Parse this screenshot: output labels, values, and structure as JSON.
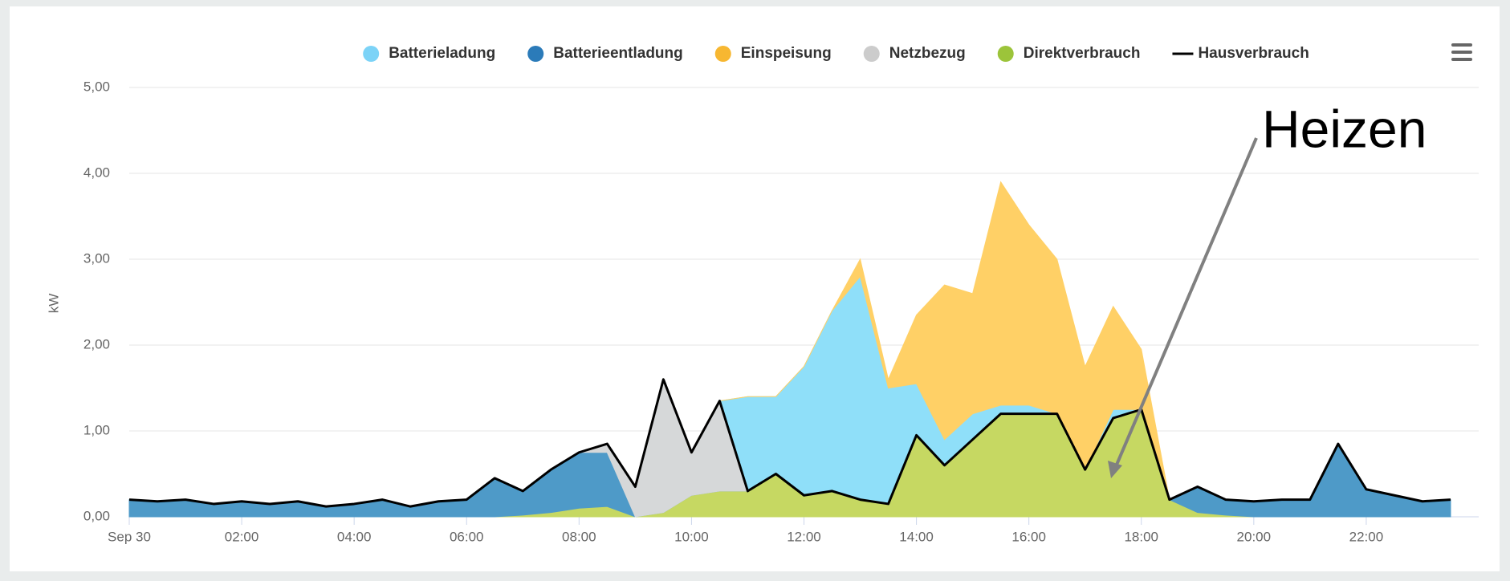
{
  "chart_data": {
    "type": "area",
    "stacked": true,
    "y_label": "kW",
    "x": [
      0,
      0.5,
      1,
      1.5,
      2,
      2.5,
      3,
      3.5,
      4,
      4.5,
      5,
      5.5,
      6,
      6.5,
      7,
      7.5,
      8,
      8.5,
      9,
      9.5,
      10,
      10.5,
      11,
      11.5,
      12,
      12.5,
      13,
      13.5,
      14,
      14.5,
      15,
      15.5,
      16,
      16.5,
      17,
      17.5,
      18,
      18.5,
      19,
      19.5,
      20,
      20.5,
      21,
      21.5,
      22,
      22.5,
      23,
      23.5
    ],
    "xlim": [
      0,
      24
    ],
    "xticks": [
      {
        "value": 0,
        "label": "Sep 30"
      },
      {
        "value": 2,
        "label": "02:00"
      },
      {
        "value": 4,
        "label": "04:00"
      },
      {
        "value": 6,
        "label": "06:00"
      },
      {
        "value": 8,
        "label": "08:00"
      },
      {
        "value": 10,
        "label": "10:00"
      },
      {
        "value": 12,
        "label": "12:00"
      },
      {
        "value": 14,
        "label": "14:00"
      },
      {
        "value": 16,
        "label": "16:00"
      },
      {
        "value": 18,
        "label": "18:00"
      },
      {
        "value": 20,
        "label": "20:00"
      },
      {
        "value": 22,
        "label": "22:00"
      }
    ],
    "ylim": [
      0,
      5
    ],
    "yticks": [
      {
        "value": 0,
        "label": "0,00"
      },
      {
        "value": 1,
        "label": "1,00"
      },
      {
        "value": 2,
        "label": "2,00"
      },
      {
        "value": 3,
        "label": "3,00"
      },
      {
        "value": 4,
        "label": "4,00"
      },
      {
        "value": 5,
        "label": "5,00"
      }
    ],
    "grid": true,
    "legend": "top",
    "series": [
      {
        "name": "Batterieladung",
        "color": "#7cd3f7",
        "values": [
          0,
          0,
          0,
          0,
          0,
          0,
          0,
          0,
          0,
          0,
          0,
          0,
          0,
          0,
          0,
          0,
          0,
          0,
          0,
          0,
          0,
          0,
          1.1,
          0.9,
          1.5,
          2.1,
          2.6,
          1.35,
          0.6,
          0.3,
          0.3,
          0.1,
          0.1,
          0,
          0,
          0.1,
          0,
          0,
          0,
          0,
          0,
          0,
          0,
          0,
          0,
          0,
          0,
          0
        ]
      },
      {
        "name": "Batterieentladung",
        "color": "#2b7bb9",
        "values": [
          0.2,
          0.18,
          0.2,
          0.15,
          0.18,
          0.15,
          0.18,
          0.12,
          0.15,
          0.2,
          0.12,
          0.18,
          0.2,
          0.45,
          0.28,
          0.5,
          0.65,
          0.63,
          0,
          0,
          0,
          0,
          0,
          0,
          0,
          0,
          0,
          0,
          0,
          0,
          0,
          0,
          0,
          0,
          0,
          0,
          0,
          0,
          0.3,
          0.18,
          0.18,
          0.2,
          0.2,
          0.85,
          0.32,
          0.25,
          0.18,
          0.2
        ]
      },
      {
        "name": "Einspeisung",
        "color": "#f7b731",
        "values": [
          0,
          0,
          0,
          0,
          0,
          0,
          0,
          0,
          0,
          0,
          0,
          0,
          0,
          0,
          0,
          0,
          0,
          0,
          0,
          0,
          0,
          0,
          0,
          0,
          0,
          0,
          0.2,
          0.1,
          0.8,
          1.8,
          1.4,
          2.6,
          2.1,
          1.8,
          1.2,
          1.2,
          0.7,
          0,
          0,
          0,
          0,
          0,
          0,
          0,
          0,
          0,
          0,
          0
        ]
      },
      {
        "name": "Netzbezug",
        "color": "#cccccc",
        "values": [
          0,
          0,
          0,
          0,
          0,
          0,
          0,
          0,
          0,
          0,
          0,
          0,
          0,
          0,
          0,
          0,
          0,
          0.1,
          0.35,
          1.55,
          0.5,
          1.05,
          0,
          0,
          0,
          0,
          0,
          0,
          0,
          0,
          0,
          0,
          0,
          0,
          0,
          0,
          0,
          0,
          0,
          0,
          0,
          0,
          0,
          0,
          0,
          0,
          0,
          0
        ]
      },
      {
        "name": "Direktverbrauch",
        "color": "#9cc43a",
        "values": [
          0,
          0,
          0,
          0,
          0,
          0,
          0,
          0,
          0,
          0,
          0,
          0,
          0,
          0,
          0.02,
          0.05,
          0.1,
          0.12,
          0,
          0.05,
          0.25,
          0.3,
          0.3,
          0.5,
          0.25,
          0.3,
          0.2,
          0.15,
          0.95,
          0.6,
          0.9,
          1.2,
          1.2,
          1.2,
          0.55,
          1.15,
          1.25,
          0.2,
          0.05,
          0.02,
          0,
          0,
          0,
          0,
          0,
          0,
          0,
          0
        ]
      },
      {
        "name": "Hausverbrauch",
        "type": "line",
        "color": "#000000",
        "values": [
          0.2,
          0.18,
          0.2,
          0.15,
          0.18,
          0.15,
          0.18,
          0.12,
          0.15,
          0.2,
          0.12,
          0.18,
          0.2,
          0.45,
          0.3,
          0.55,
          0.75,
          0.85,
          0.35,
          1.6,
          0.75,
          1.35,
          0.3,
          0.5,
          0.25,
          0.3,
          0.2,
          0.15,
          0.95,
          0.6,
          0.9,
          1.2,
          1.2,
          1.2,
          0.55,
          1.15,
          1.25,
          0.2,
          0.35,
          0.2,
          0.18,
          0.2,
          0.2,
          0.85,
          0.32,
          0.25,
          0.18,
          0.2
        ]
      }
    ],
    "annotations": [
      {
        "text": "Heizen"
      }
    ]
  }
}
